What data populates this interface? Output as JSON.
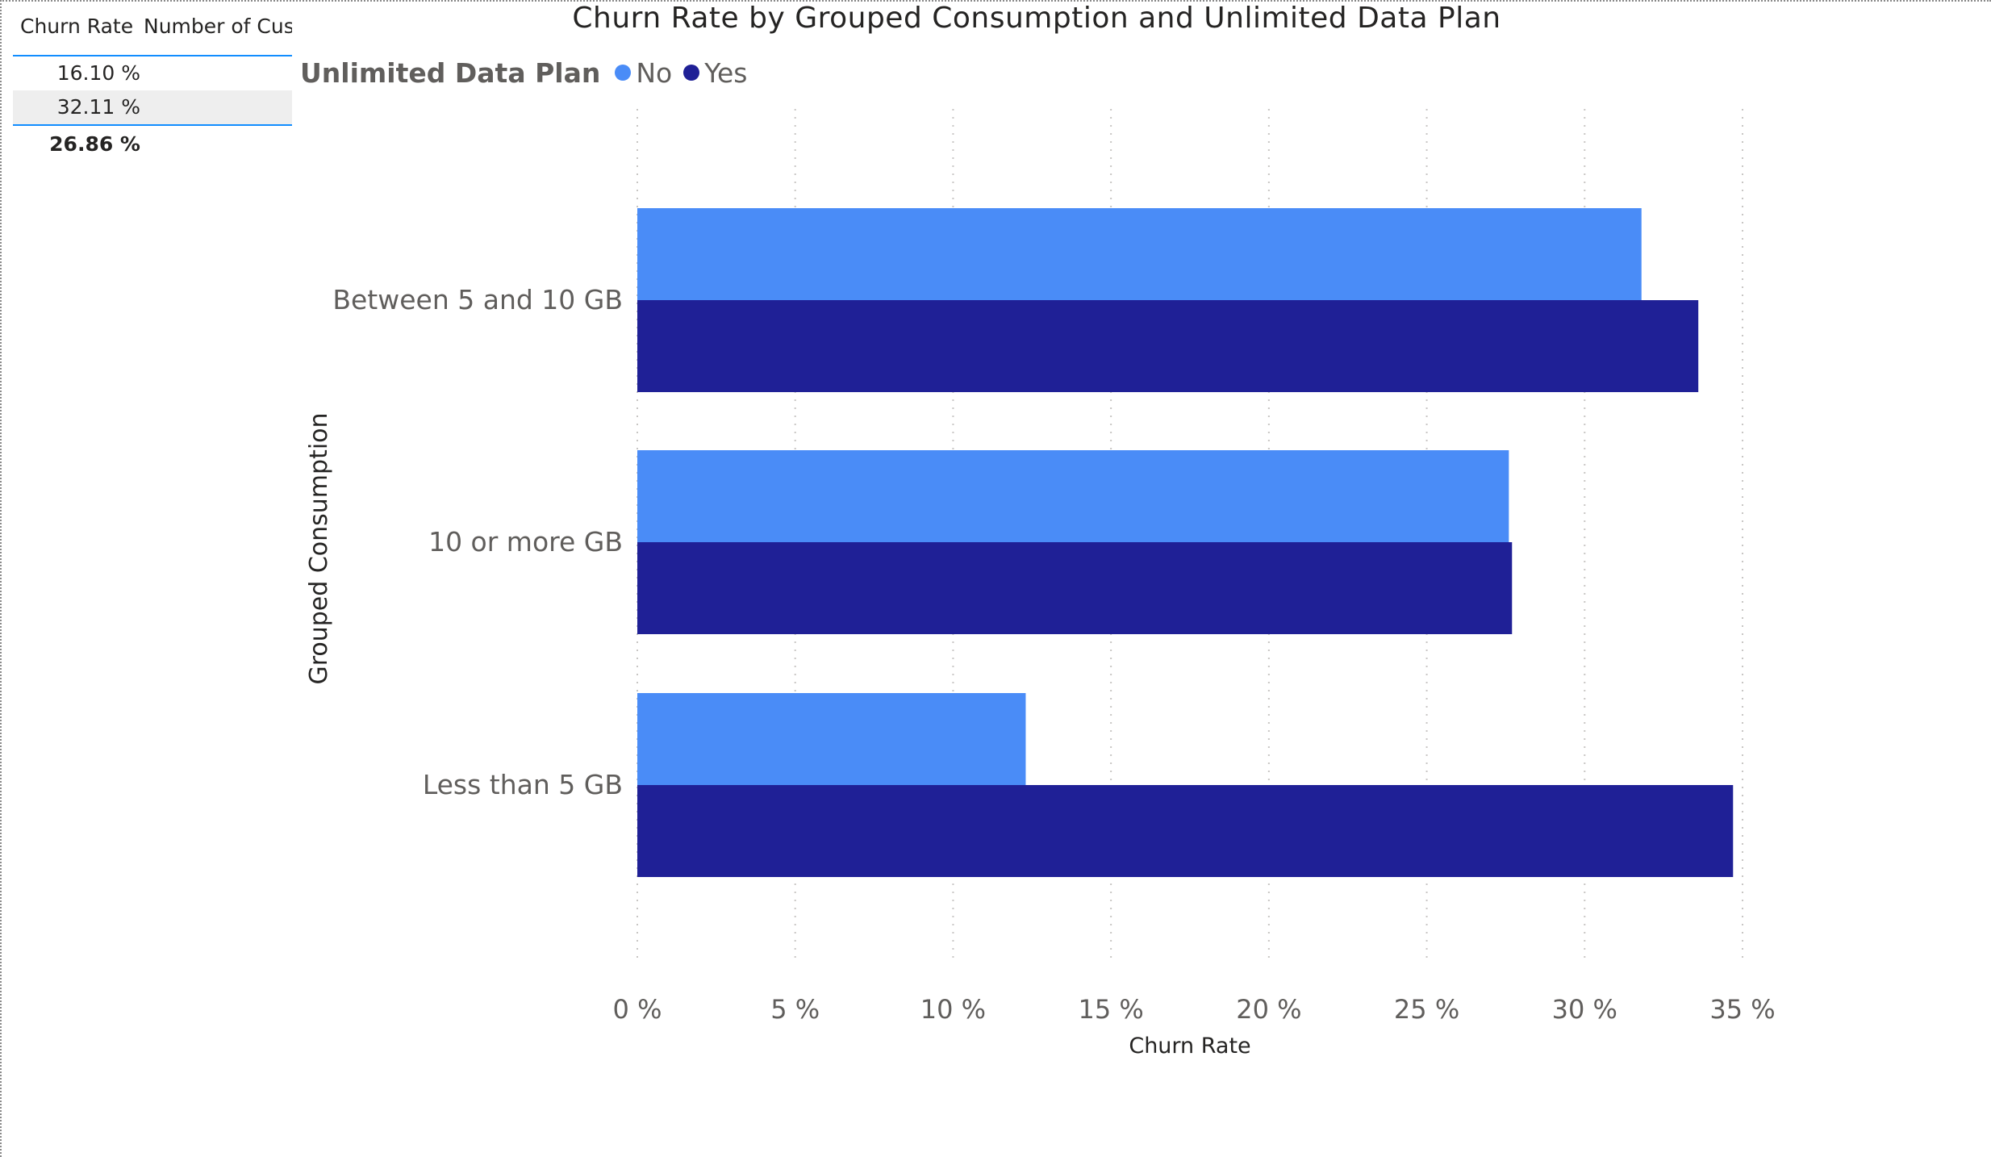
{
  "table": {
    "headers": [
      "Churn Rate",
      "Number of Cust"
    ],
    "rows": [
      {
        "churn_rate": "16.10 %"
      },
      {
        "churn_rate": "32.11 %"
      }
    ],
    "total": {
      "churn_rate": "26.86 %"
    }
  },
  "colors": {
    "no": "#4a8cf7",
    "yes": "#1f2096",
    "grid": "#c8c6c4",
    "axis_text": "#605e5c",
    "table_accent": "#118dff"
  },
  "chart_data": {
    "type": "bar",
    "orientation": "horizontal",
    "title": "Churn Rate by Grouped Consumption and Unlimited Data Plan",
    "xlabel": "Churn Rate",
    "ylabel": "Grouped Consumption",
    "legend": {
      "title": "Unlimited Data Plan",
      "position": "top-left",
      "entries": [
        "No",
        "Yes"
      ]
    },
    "categories": [
      "Between 5 and 10 GB",
      "10 or more GB",
      "Less than 5 GB"
    ],
    "series": [
      {
        "name": "No",
        "values": [
          31.8,
          27.6,
          12.3
        ]
      },
      {
        "name": "Yes",
        "values": [
          33.6,
          27.7,
          34.7
        ]
      }
    ],
    "xlim": [
      0,
      35
    ],
    "xticks": [
      "0 %",
      "5 %",
      "10 %",
      "15 %",
      "20 %",
      "25 %",
      "30 %",
      "35 %"
    ],
    "grid": "vertical dotted"
  }
}
